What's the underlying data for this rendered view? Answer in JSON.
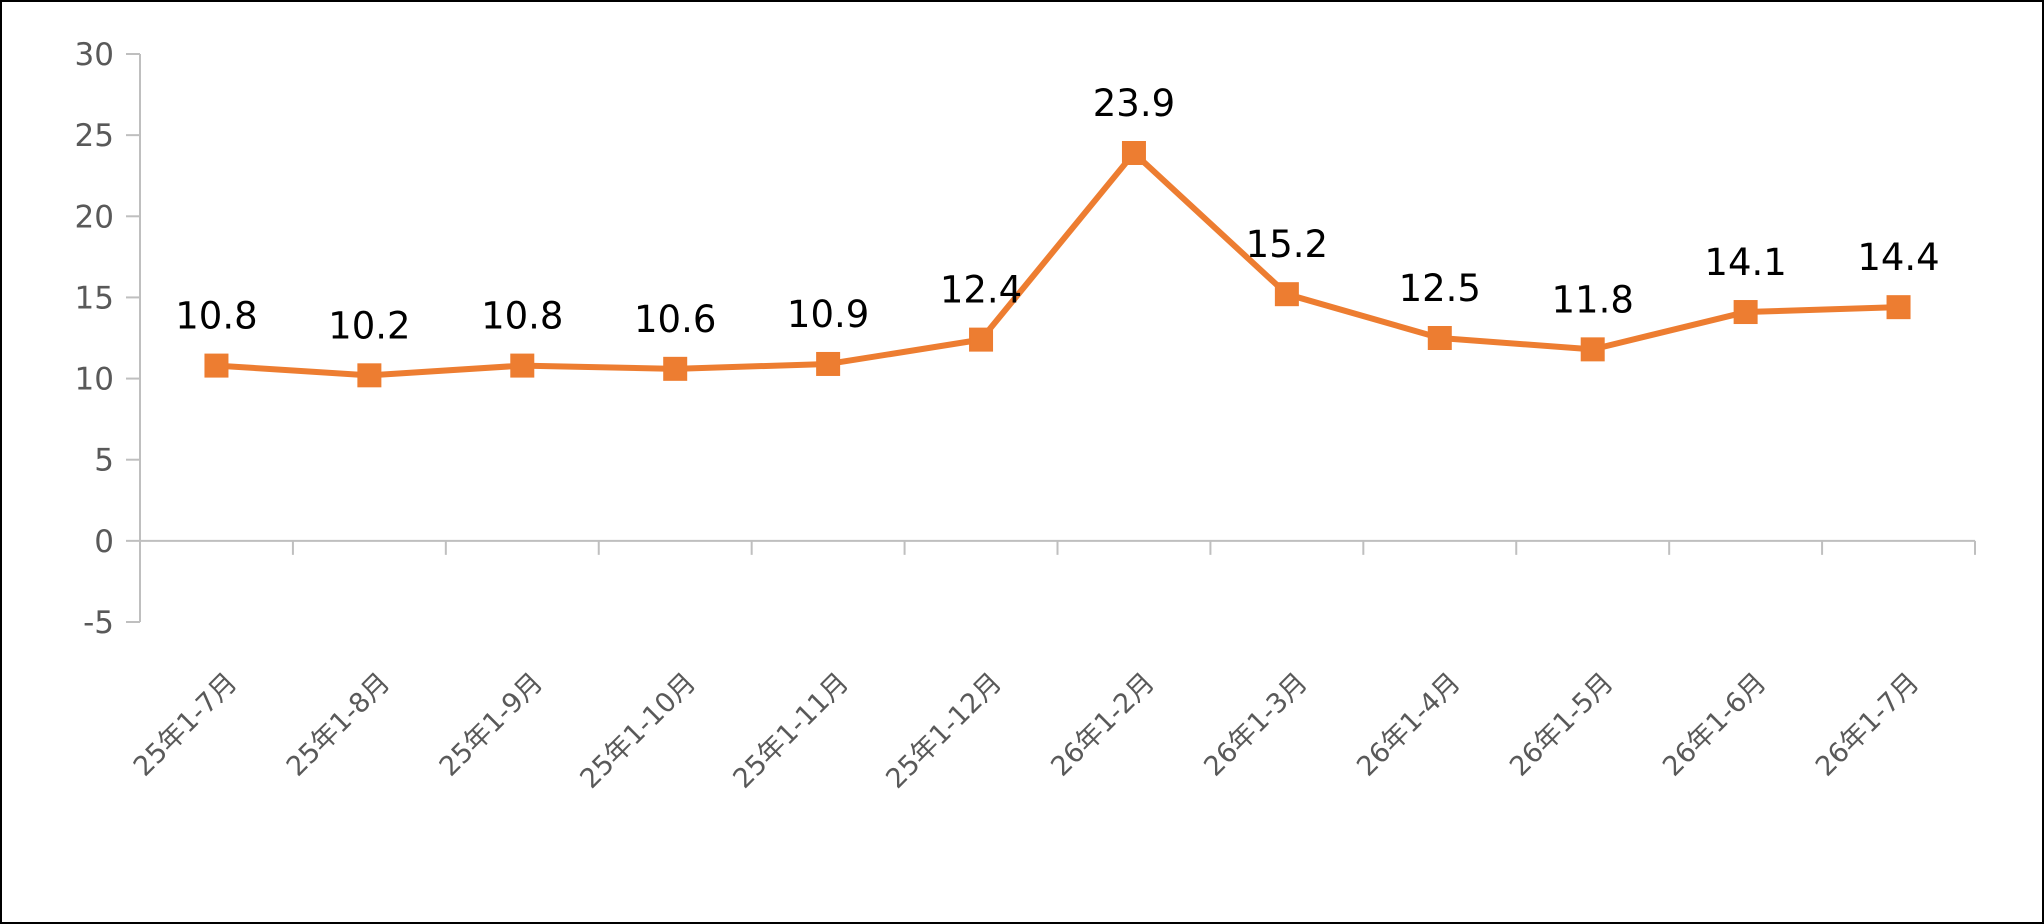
{
  "chart_data": {
    "type": "line",
    "title": "",
    "xlabel": "",
    "ylabel": "",
    "categories": [
      "25年1-7月",
      "25年1-8月",
      "25年1-9月",
      "25年1-10月",
      "25年1-11月",
      "25年1-12月",
      "26年1-2月",
      "26年1-3月",
      "26年1-4月",
      "26年1-5月",
      "26年1-6月",
      "26年1-7月"
    ],
    "series": [
      {
        "values": [
          10.8,
          10.2,
          10.8,
          10.6,
          10.9,
          12.4,
          23.9,
          15.2,
          12.5,
          11.8,
          14.1,
          14.4
        ],
        "labels": [
          "10.8",
          "10.2",
          "10.8",
          "10.6",
          "10.9",
          "12.4",
          "23.9",
          "15.2",
          "12.5",
          "11.8",
          "14.1",
          "14.4"
        ],
        "color": "#ED7D31",
        "marker": "square"
      }
    ],
    "ylim": [
      -5,
      30
    ],
    "yticks": [
      -5,
      0,
      5,
      10,
      15,
      20,
      25,
      30
    ],
    "ytick_labels": [
      "-5",
      "0",
      "5",
      "10",
      "15",
      "20",
      "25",
      "30"
    ],
    "grid": false,
    "legend": "none",
    "axis_color": "#BFBFBF",
    "tick_label_color": "#595959"
  }
}
